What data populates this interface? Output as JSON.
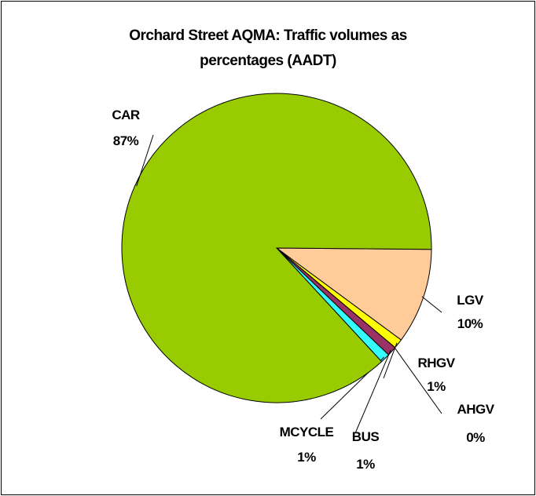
{
  "chart_data": {
    "type": "pie",
    "title": "Orchard Street AQMA: Traffic volumes as percentages (AADT)",
    "categories": [
      "LGV",
      "RHGV",
      "AHGV",
      "BUS",
      "MCYCLE",
      "CAR"
    ],
    "values": [
      10,
      1,
      0,
      1,
      1,
      87
    ],
    "value_labels": [
      "10%",
      "1%",
      "0%",
      "1%",
      "1%",
      "87%"
    ],
    "colors": [
      "#ffcc99",
      "#ffff00",
      "#ff9900",
      "#993366",
      "#33ffff",
      "#99cc00"
    ]
  }
}
